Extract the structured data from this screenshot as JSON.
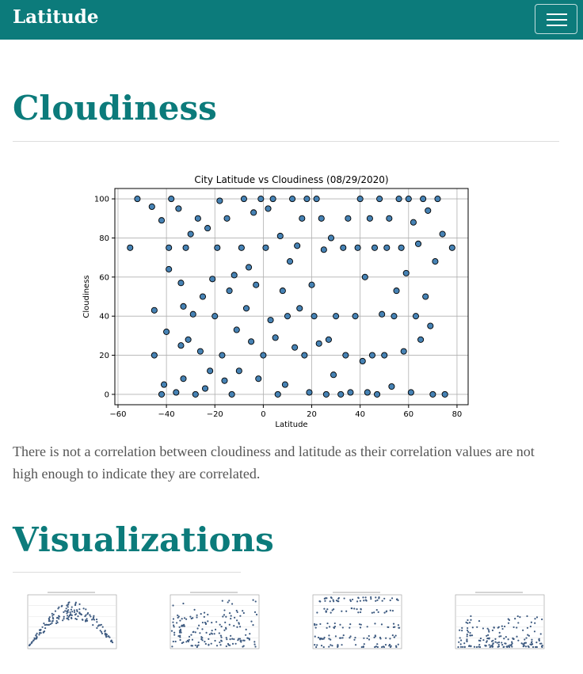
{
  "navbar": {
    "brand": "Latitude"
  },
  "section": {
    "heading": "Cloudiness",
    "description": "There is not a correlation between cloudiness and latitude as their correlation values are not high enough to indicate they are correlated."
  },
  "gallery": {
    "heading": "Visualizations"
  },
  "chart_data": {
    "type": "scatter",
    "title": "City Latitude vs Cloudiness (08/29/2020)",
    "x_label": "Latitude",
    "y_label": "Cloudiness",
    "x": [
      -55,
      -52,
      -46,
      -45,
      -45,
      -42,
      -42,
      -41,
      -40,
      -39,
      -39,
      -38,
      -36,
      -35,
      -34,
      -34,
      -33,
      -33,
      -32,
      -31,
      -30,
      -29,
      -28,
      -27,
      -26,
      -25,
      -24,
      -23,
      -22,
      -21,
      -20,
      -19,
      -18,
      -17,
      -16,
      -15,
      -14,
      -13,
      -12,
      -11,
      -10,
      -9,
      -8,
      -7,
      -6,
      -5,
      -4,
      -3,
      -2,
      -1,
      0,
      1,
      2,
      3,
      4,
      5,
      6,
      7,
      8,
      9,
      10,
      11,
      12,
      13,
      14,
      15,
      16,
      17,
      18,
      19,
      20,
      21,
      22,
      23,
      24,
      25,
      26,
      27,
      28,
      29,
      30,
      32,
      33,
      34,
      35,
      36,
      38,
      39,
      40,
      41,
      42,
      43,
      44,
      45,
      46,
      47,
      48,
      49,
      50,
      51,
      52,
      53,
      54,
      55,
      56,
      57,
      58,
      59,
      60,
      61,
      62,
      63,
      64,
      65,
      66,
      67,
      68,
      69,
      70,
      71,
      72,
      74,
      75,
      78
    ],
    "series": [
      {
        "name": "Cloudiness",
        "color": "#4682b4",
        "values": [
          75,
          100,
          96,
          43,
          20,
          89,
          0,
          5,
          32,
          75,
          64,
          100,
          1,
          95,
          57,
          25,
          45,
          8,
          75,
          28,
          82,
          41,
          0,
          90,
          22,
          50,
          3,
          85,
          12,
          59,
          40,
          75,
          99,
          20,
          7,
          90,
          53,
          0,
          61,
          33,
          12,
          75,
          100,
          44,
          65,
          27,
          93,
          56,
          8,
          100,
          20,
          75,
          95,
          38,
          100,
          29,
          0,
          81,
          53,
          5,
          40,
          68,
          100,
          24,
          76,
          44,
          90,
          20,
          100,
          1,
          56,
          40,
          100,
          26,
          90,
          74,
          0,
          28,
          80,
          10,
          40,
          0,
          75,
          20,
          90,
          1,
          40,
          75,
          100,
          17,
          60,
          1,
          90,
          20,
          75,
          0,
          100,
          41,
          20,
          75,
          90,
          4,
          40,
          53,
          100,
          75,
          22,
          62,
          100,
          1,
          88,
          40,
          77,
          28,
          100,
          50,
          94,
          35,
          0,
          68,
          100,
          82,
          0,
          75
        ]
      }
    ],
    "xlim": [
      -61.3,
      84.6
    ],
    "ylim": [
      -5.3,
      105.3
    ],
    "xticks": [
      {
        "value": -60,
        "label": "−60"
      },
      {
        "value": -40,
        "label": "−40"
      },
      {
        "value": -20,
        "label": "−20"
      },
      0,
      20,
      40,
      60,
      80
    ],
    "yticks": [
      0,
      20,
      40,
      60,
      80,
      100
    ],
    "grid": true
  }
}
